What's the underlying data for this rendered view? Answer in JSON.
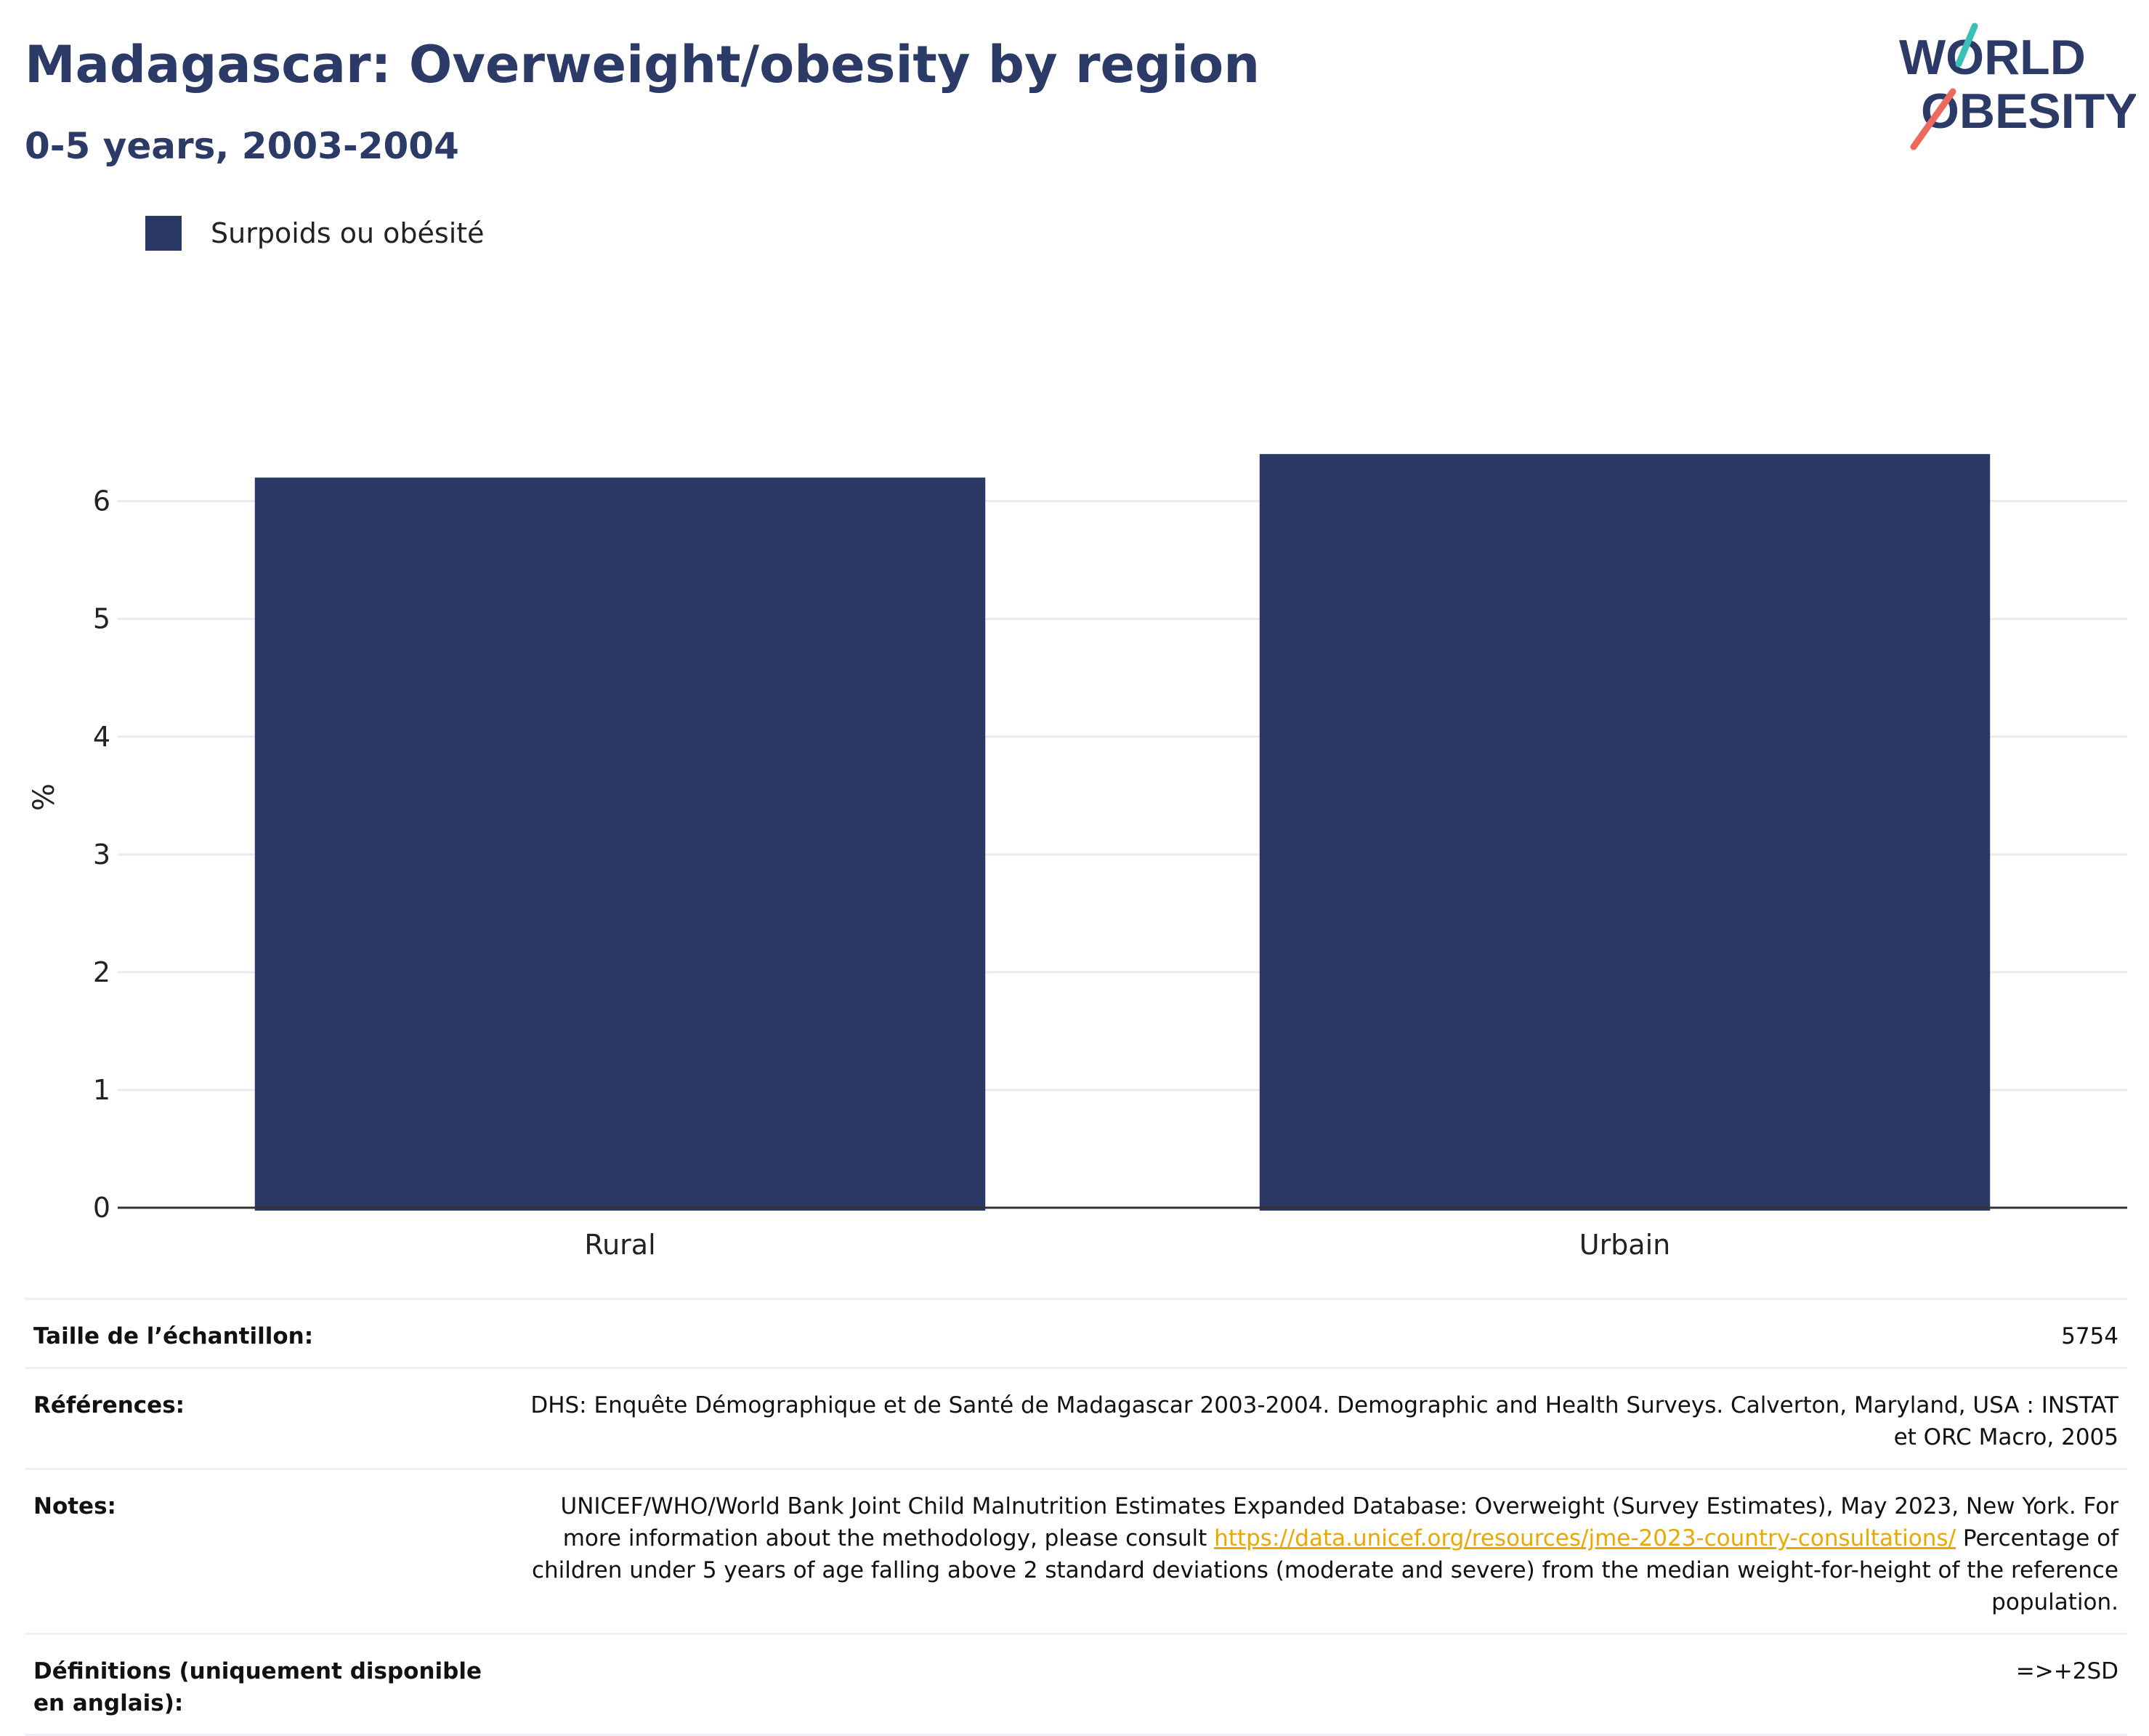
{
  "header": {
    "title": "Madagascar: Overweight/obesity by region",
    "subtitle": "0-5 years, 2003-2004",
    "logo_text_line1": "WORLD",
    "logo_text_line2": "OBESITY"
  },
  "colors": {
    "bar": "#2b3765",
    "title": "#2b3a67",
    "logo_teal": "#3bbfb6",
    "logo_coral": "#ec6a5c",
    "link": "#e9a800"
  },
  "legend": {
    "items": [
      {
        "label": "Surpoids ou obésité"
      }
    ]
  },
  "chart_data": {
    "type": "bar",
    "categories": [
      "Rural",
      "Urbain"
    ],
    "series": [
      {
        "name": "Surpoids ou obésité",
        "values": [
          6.2,
          6.4
        ]
      }
    ],
    "ylabel": "%",
    "xlabel": "",
    "ylim": [
      0,
      6.8
    ],
    "yticks": [
      0,
      1,
      2,
      3,
      4,
      5,
      6
    ],
    "grid": true,
    "legend_position": "top-left"
  },
  "info": {
    "sample_size_label": "Taille de l’échantillon:",
    "sample_size_value": "5754",
    "references_label": "Références:",
    "references_value": "DHS: Enquête Démographique et de Santé de Madagascar 2003-2004. Demographic and Health Surveys. Calverton, Maryland, USA : INSTAT et ORC Macro, 2005",
    "notes_label": "Notes:",
    "notes_before_link": "UNICEF/WHO/World Bank Joint Child Malnutrition Estimates Expanded Database: Overweight (Survey Estimates), May 2023, New York. For more information about the methodology, please consult ",
    "notes_link": "https://data.unicef.org/resources/jme-2023-country-consultations/",
    "notes_after_link": " Percentage of children under 5 years of age falling above 2 standard deviations (moderate and severe) from the median weight-for-height of the reference population.",
    "definitions_label": "Définitions (uniquement disponible en anglais):",
    "definitions_value": "=>+2SD"
  }
}
